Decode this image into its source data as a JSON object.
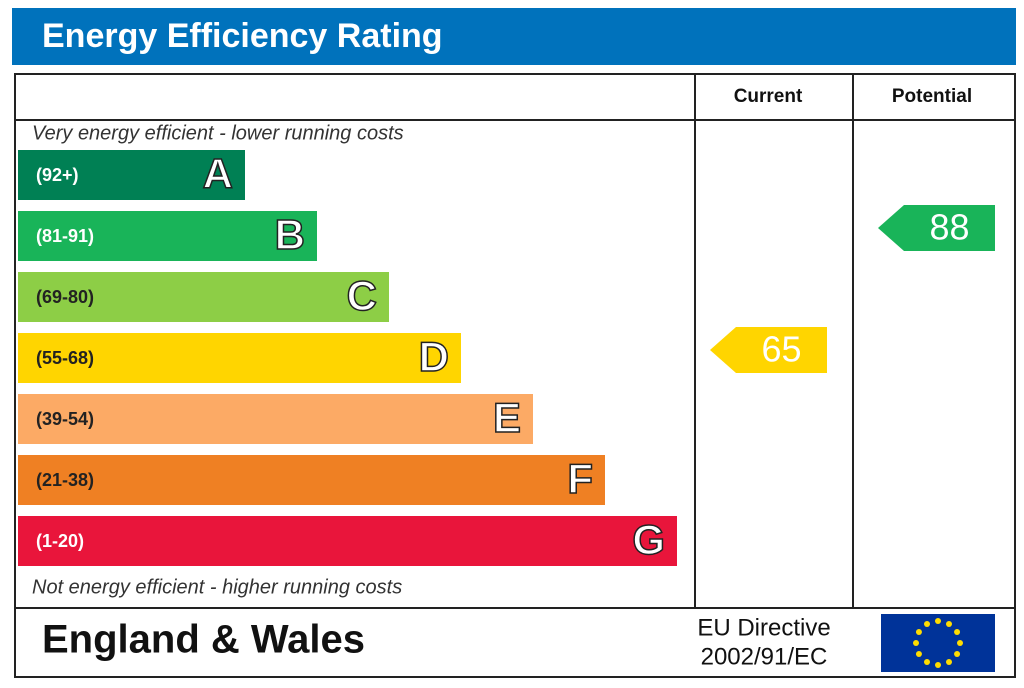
{
  "title": "Energy Efficiency Rating",
  "columns": [
    "Current",
    "Potential"
  ],
  "top_note": "Very energy efficient - lower running costs",
  "bottom_note": "Not energy efficient - higher running costs",
  "bands": [
    {
      "range": "(92+)",
      "letter": "A",
      "color": "#008054"
    },
    {
      "range": "(81-91)",
      "letter": "B",
      "color": "#19b459"
    },
    {
      "range": "(69-80)",
      "letter": "C",
      "color": "#8dce46"
    },
    {
      "range": "(55-68)",
      "letter": "D",
      "color": "#ffd500"
    },
    {
      "range": "(39-54)",
      "letter": "E",
      "color": "#fcaa65"
    },
    {
      "range": "(21-38)",
      "letter": "F",
      "color": "#ef8023"
    },
    {
      "range": "(1-20)",
      "letter": "G",
      "color": "#e9153b"
    }
  ],
  "current": 65,
  "potential": 88,
  "footer": {
    "region": "England & Wales",
    "directive_line1": "EU Directive",
    "directive_line2": "2002/91/EC"
  }
}
